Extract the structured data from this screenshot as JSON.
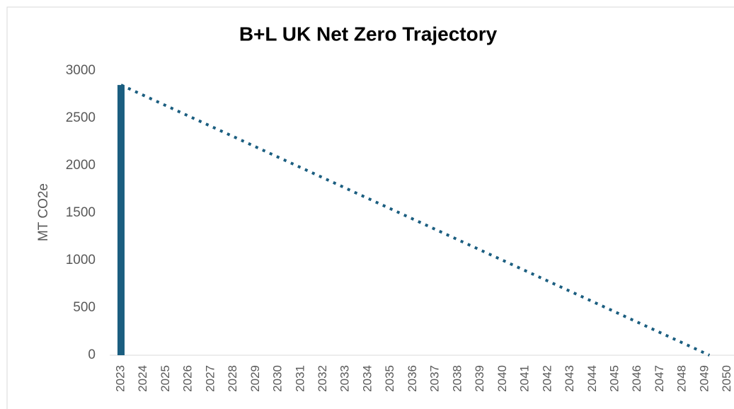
{
  "chart_data": {
    "type": "bar",
    "title": "B+L UK Net Zero Trajectory",
    "y_label": "MT CO2e",
    "categories": [
      "2023",
      "2024",
      "2025",
      "2026",
      "2027",
      "2028",
      "2029",
      "2030",
      "2031",
      "2032",
      "2033",
      "2034",
      "2035",
      "2036",
      "2037",
      "2038",
      "2039",
      "2040",
      "2041",
      "2042",
      "2043",
      "2044",
      "2045",
      "2046",
      "2047",
      "2048",
      "2049",
      "2050"
    ],
    "values": [
      2850,
      null,
      null,
      null,
      null,
      null,
      null,
      null,
      null,
      null,
      null,
      null,
      null,
      null,
      null,
      null,
      null,
      null,
      null,
      null,
      null,
      null,
      null,
      null,
      null,
      null,
      null,
      null
    ],
    "color": "#1b5e80",
    "trendline": {
      "x": [
        2023,
        2049.2
      ],
      "values": [
        2850,
        0
      ],
      "color": "#1b5e80",
      "style": "dotted"
    },
    "ylim": [
      0,
      3000
    ],
    "yticks": [
      0,
      500,
      1000,
      1500,
      2000,
      2500,
      3000
    ],
    "grid": false
  }
}
